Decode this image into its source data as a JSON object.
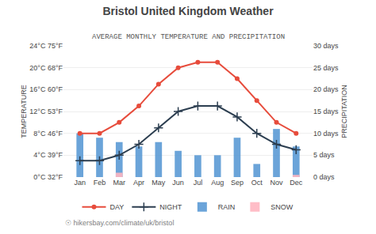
{
  "chart_data": {
    "type": "bar",
    "title": "Bristol United Kingdom Weather",
    "subtitle": "AVERAGE MONTHLY TEMPERATURE AND PRECIPITATION",
    "categories": [
      "Jan",
      "Feb",
      "Mar",
      "Apr",
      "May",
      "Jun",
      "Jul",
      "Aug",
      "Sep",
      "Oct",
      "Nov",
      "Dec"
    ],
    "series": [
      {
        "name": "DAY",
        "type": "line",
        "axis": "y2",
        "color": "#e74c3c",
        "marker": "circle",
        "values": [
          8,
          8,
          10,
          13,
          17,
          20,
          21,
          21,
          18,
          14,
          10,
          8
        ]
      },
      {
        "name": "NIGHT",
        "type": "line",
        "axis": "y2",
        "color": "#2c3e50",
        "marker": "plus",
        "values": [
          3,
          3,
          4,
          6,
          9,
          12,
          13,
          13,
          11,
          8,
          6,
          5
        ]
      },
      {
        "name": "RAIN",
        "type": "bar",
        "color": "#5b9bd5",
        "values": [
          10,
          9,
          8,
          7,
          8,
          6,
          5,
          5,
          9,
          3,
          11,
          7
        ]
      },
      {
        "name": "SNOW",
        "type": "bar",
        "color": "#ffb6c1",
        "values": [
          0,
          0,
          1,
          0,
          0,
          0,
          0,
          0,
          0,
          0,
          0,
          0.5
        ]
      }
    ],
    "y_label": "PRECIPITATION",
    "ylim": [
      0,
      30
    ],
    "yticks": [
      {
        "value": 0,
        "label": "0 days"
      },
      {
        "value": 5,
        "label": "5 days"
      },
      {
        "value": 10,
        "label": "10 days"
      },
      {
        "value": 15,
        "label": "15 days"
      },
      {
        "value": 20,
        "label": "20 days"
      },
      {
        "value": 25,
        "label": "25 days"
      },
      {
        "value": 30,
        "label": "30 days"
      }
    ],
    "y2_label": "TEMPERATURE",
    "y2lim": [
      0,
      24
    ],
    "y2ticks": [
      {
        "value": 0,
        "label": "0°C 32°F"
      },
      {
        "value": 4,
        "label": "4°C 39°F"
      },
      {
        "value": 8,
        "label": "8°C 46°F"
      },
      {
        "value": 12,
        "label": "12°C 53°F"
      },
      {
        "value": 16,
        "label": "16°C 60°F"
      },
      {
        "value": 20,
        "label": "20°C 68°F"
      },
      {
        "value": 24,
        "label": "24°C 75°F"
      }
    ],
    "grid": true,
    "legend": "bottom",
    "annotations": [
      {
        "text": "☉ hikersbay.com/climate/uk/bristol"
      }
    ]
  }
}
